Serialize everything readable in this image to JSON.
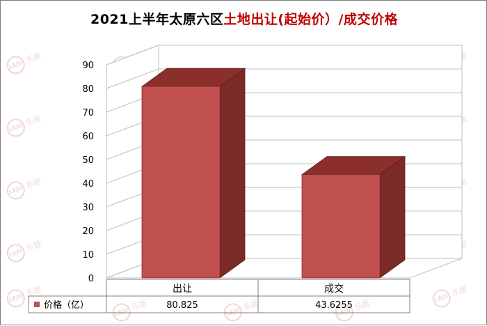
{
  "title": {
    "black_part": "2021上半年太原六区",
    "red_part": "土地出让(起始价）/成交价格"
  },
  "watermark": {
    "logo_text": "LEJU",
    "text": "乐居"
  },
  "colors": {
    "bar_front": "#c0504d",
    "bar_top": "#8b2f2c",
    "bar_side": "#7a2a28",
    "title_red": "#c00000"
  },
  "chart_data": {
    "type": "bar",
    "categories": [
      "出让",
      "成交"
    ],
    "series": [
      {
        "name": "价格（亿）",
        "values": [
          80.825,
          43.6255
        ]
      }
    ],
    "value_labels": [
      "80.825",
      "43.6255"
    ],
    "ylim": [
      0,
      90
    ],
    "yticks": [
      0,
      10,
      20,
      30,
      40,
      50,
      60,
      70,
      80,
      90
    ],
    "grid": true,
    "legend": "data-table",
    "style": "3d"
  }
}
